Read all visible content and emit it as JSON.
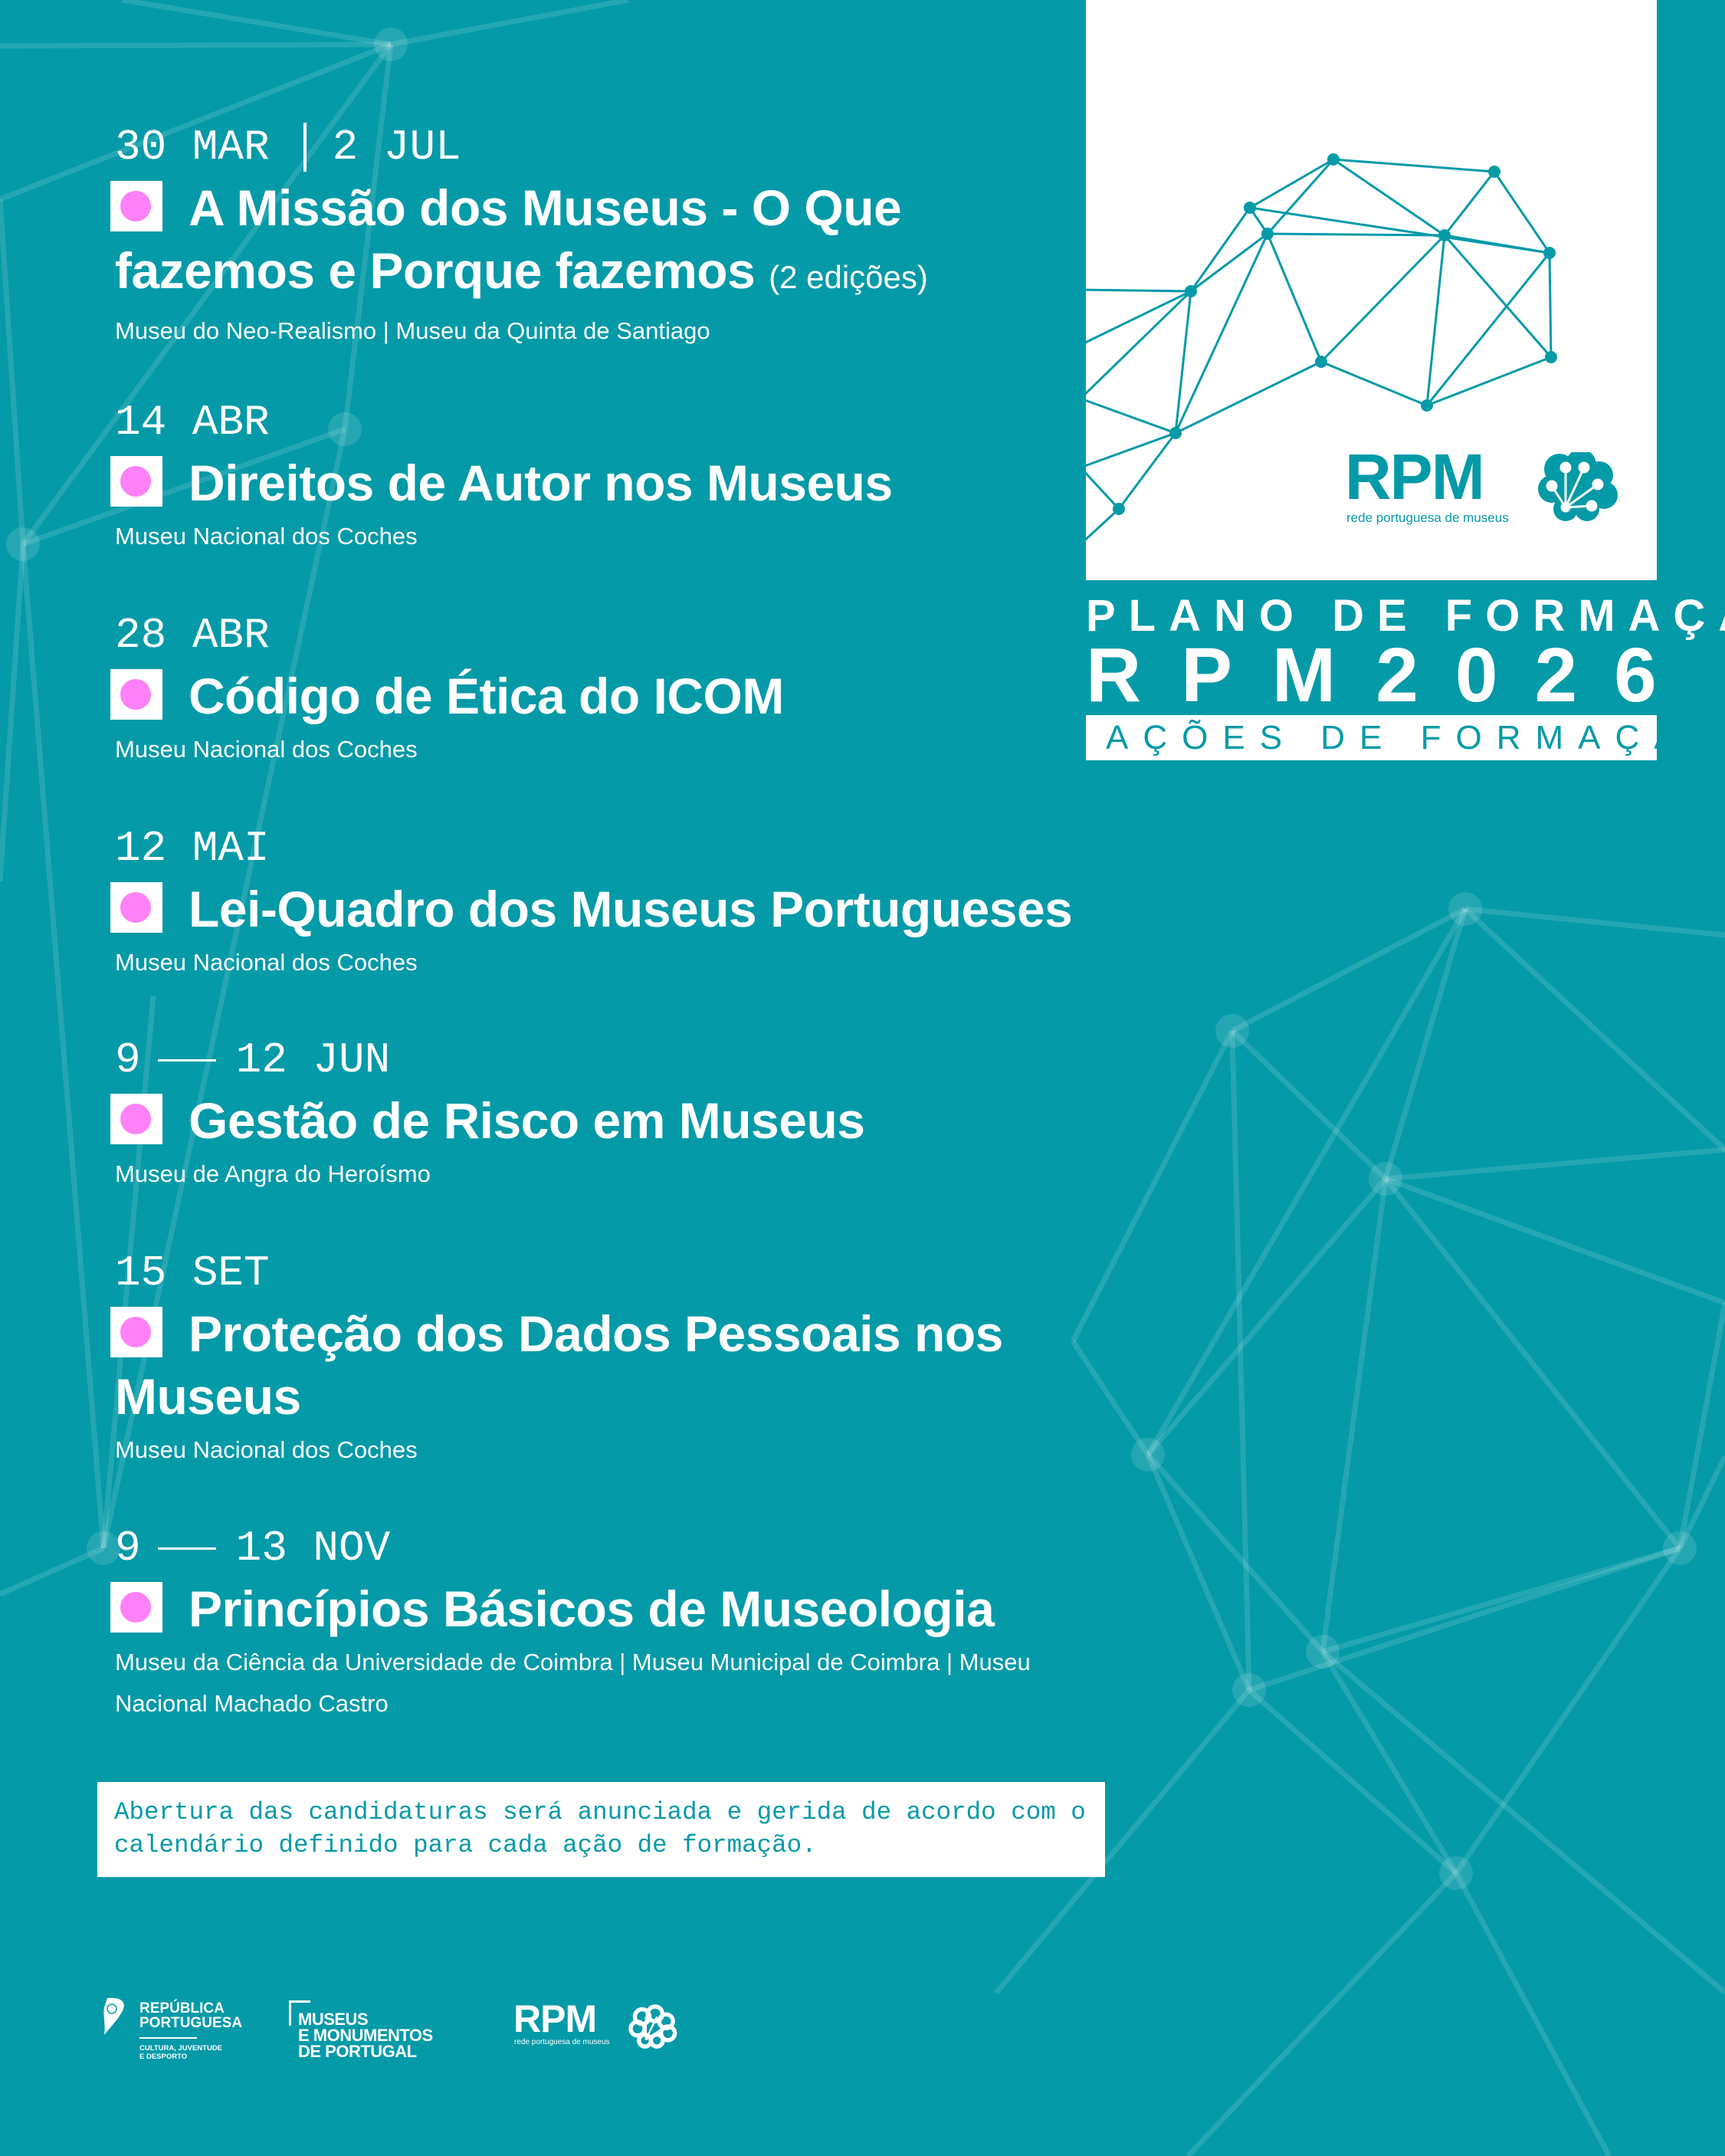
{
  "colors": {
    "background": "#049aa8",
    "accent_pink": "#ff80f7",
    "white": "#ffffff"
  },
  "events": [
    {
      "date_start": "30 MAR",
      "date_end": "2 JUL",
      "separator": "bar",
      "title": "A Missão dos Museus - O Que fazemos e Porque fazemos",
      "edition_note": "(2 edições)",
      "venue": "Museu do Neo-Realismo | Museu da Quinta de Santiago"
    },
    {
      "date_start": "14 ABR",
      "date_end": "",
      "separator": "none",
      "title": "Direitos de Autor nos Museus",
      "edition_note": "",
      "venue": "Museu Nacional dos Coches"
    },
    {
      "date_start": "28 ABR",
      "date_end": "",
      "separator": "none",
      "title": "Código de Ética do ICOM",
      "edition_note": "",
      "venue": "Museu Nacional dos Coches"
    },
    {
      "date_start": "12 MAI",
      "date_end": "",
      "separator": "none",
      "title": "Lei-Quadro dos Museus Portugueses",
      "edition_note": "",
      "venue": "Museu Nacional dos Coches"
    },
    {
      "date_start": "9",
      "date_end": "12 JUN",
      "separator": "dash",
      "title": "Gestão de Risco em Museus",
      "edition_note": "",
      "venue": "Museu de Angra do Heroísmo"
    },
    {
      "date_start": "15 SET",
      "date_end": "",
      "separator": "none",
      "title": "Proteção dos Dados Pessoais nos Museus",
      "edition_note": "",
      "venue": "Museu Nacional dos Coches"
    },
    {
      "date_start": "9",
      "date_end": "13 NOV",
      "separator": "dash",
      "title": "Princípios Básicos de Museologia",
      "edition_note": "",
      "venue": "Museu da Ciência da Universidade de Coimbra | Museu Municipal de Coimbra | Museu Nacional Machado Castro"
    }
  ],
  "header": {
    "line1": "PLANO DE FORMAÇÃO",
    "line2_left": "RPM",
    "line2_right": "2026",
    "subtitle": "AÇÕES DE FORMAÇÃO"
  },
  "rpm_logo": {
    "wordmark": "RPM",
    "tagline": "rede portuguesa de museus",
    "icon": "flower-network-icon"
  },
  "notice": "Abertura das candidaturas será anunciada e gerida de acordo com o calendário definido para cada ação de formação.",
  "footer_logos": {
    "republica": {
      "line1": "REPÚBLICA",
      "line2": "PORTUGUESA",
      "sub1": "CULTURA, JUVENTUDE",
      "sub2": "E DESPORTO"
    },
    "mmp": {
      "line1": "MUSEUS",
      "line2": "E MONUMENTOS",
      "line3": "DE PORTUGAL"
    },
    "rpm": {
      "wordmark": "RPM",
      "tagline": "rede portuguesa de museus"
    }
  }
}
